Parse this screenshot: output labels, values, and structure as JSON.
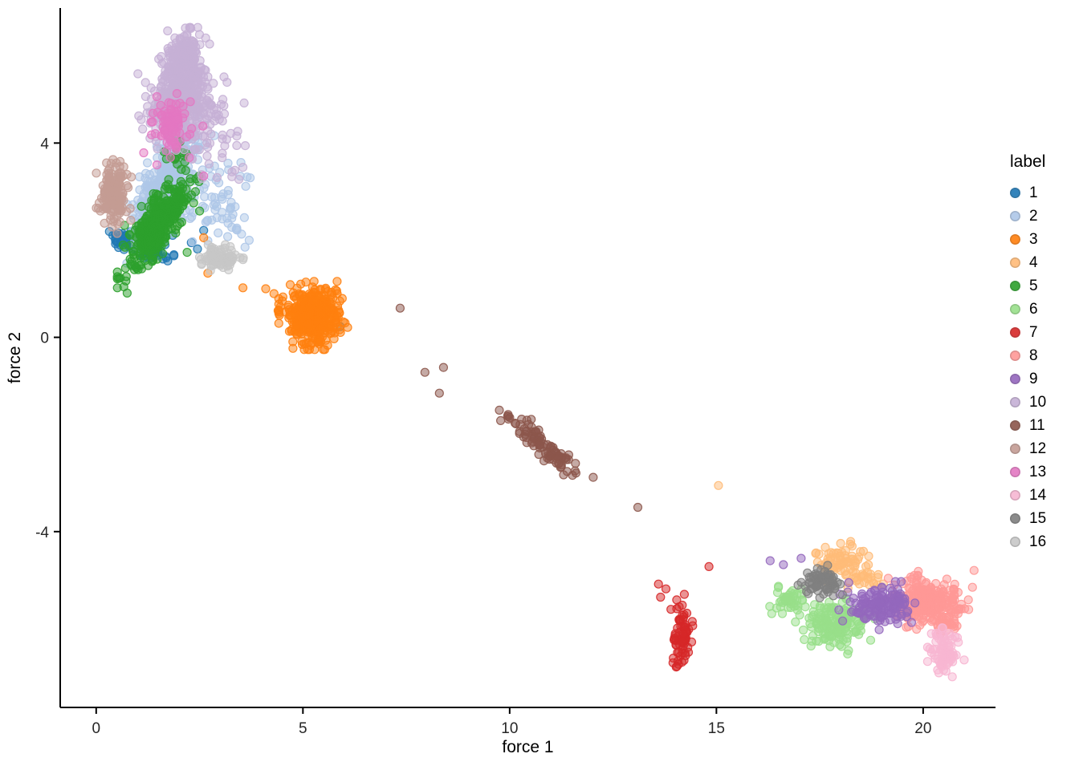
{
  "chart_data": {
    "type": "scatter",
    "title": "",
    "xlabel": "force 1",
    "ylabel": "force 2",
    "xlim": [
      -0.87,
      21.75
    ],
    "ylim": [
      -7.62,
      6.78
    ],
    "xticks": [
      0,
      5,
      10,
      15,
      20
    ],
    "yticks": [
      -4,
      0,
      4
    ],
    "grid": false,
    "legend_title": "label",
    "legend_position": "right",
    "point_radius": 5,
    "point_fill_alpha": 0.5,
    "point_stroke_alpha": 0.9,
    "series": [
      {
        "name": "1",
        "color": "#1f77b4",
        "clusters": [
          {
            "cx": 1.1,
            "cy": 1.88,
            "sx": 0.3,
            "sy": 0.09,
            "slope": -0.25,
            "n": 160
          }
        ],
        "points": [
          [
            2.3,
            1.95
          ],
          [
            2.45,
            1.82
          ],
          [
            2.6,
            2.2
          ],
          [
            5.9,
            0.22
          ],
          [
            1.85,
            2.1
          ]
        ]
      },
      {
        "name": "2",
        "color": "#aec7e8",
        "clusters": [
          {
            "cx": 1.6,
            "cy": 3.1,
            "sx": 0.33,
            "sy": 0.38,
            "slope": 1.25,
            "n": 420
          },
          {
            "cx": 2.45,
            "cy": 3.1,
            "sx": 0.35,
            "sy": 0.45,
            "n": 70
          },
          {
            "cx": 3.25,
            "cy": 2.7,
            "sx": 0.28,
            "sy": 0.55,
            "n": 25
          }
        ],
        "points": [
          [
            3.5,
            3.6
          ],
          [
            3.65,
            3.3
          ],
          [
            3.4,
            2.25
          ],
          [
            3.7,
            2.0
          ],
          [
            2.95,
            2.15
          ]
        ]
      },
      {
        "name": "3",
        "color": "#ff7f0e",
        "clusters": [
          {
            "cx": 5.25,
            "cy": 0.45,
            "sx": 0.32,
            "sy": 0.27,
            "n": 420
          }
        ],
        "points": [
          [
            2.6,
            2.05
          ],
          [
            2.7,
            1.32
          ],
          [
            3.55,
            1.02
          ],
          [
            4.1,
            1.0
          ],
          [
            4.3,
            0.9
          ],
          [
            4.5,
            0.75
          ],
          [
            4.65,
            0.62
          ],
          [
            4.4,
            0.55
          ],
          [
            5.95,
            0.8
          ]
        ]
      },
      {
        "name": "4",
        "color": "#ffbb78",
        "clusters": [
          {
            "cx": 17.95,
            "cy": -4.62,
            "sx": 0.3,
            "sy": 0.16,
            "n": 70
          },
          {
            "cx": 18.55,
            "cy": -4.95,
            "sx": 0.22,
            "sy": 0.12,
            "n": 25
          }
        ],
        "points": [
          [
            15.05,
            -3.05
          ],
          [
            17.4,
            -4.45
          ],
          [
            18.9,
            -5.1
          ]
        ]
      },
      {
        "name": "5",
        "color": "#2ca02c",
        "clusters": [
          {
            "cx": 1.5,
            "cy": 2.35,
            "sx": 0.38,
            "sy": 0.28,
            "slope": 0.95,
            "n": 380
          },
          {
            "cx": 1.92,
            "cy": 3.85,
            "sx": 0.13,
            "sy": 0.16,
            "n": 16
          }
        ],
        "points": [
          [
            2.5,
            2.6
          ],
          [
            2.4,
            3.0
          ],
          [
            0.65,
            1.9
          ],
          [
            2.2,
            1.75
          ]
        ]
      },
      {
        "name": "6",
        "color": "#98df8a",
        "clusters": [
          {
            "cx": 17.9,
            "cy": -5.95,
            "sx": 0.38,
            "sy": 0.22,
            "n": 160
          },
          {
            "cx": 16.75,
            "cy": -5.35,
            "sx": 0.24,
            "sy": 0.13,
            "n": 45
          }
        ],
        "points": [
          [
            17.15,
            -5.55
          ],
          [
            17.35,
            -5.72
          ],
          [
            18.6,
            -5.6
          ],
          [
            16.5,
            -5.15
          ]
        ]
      },
      {
        "name": "7",
        "color": "#d62728",
        "clusters": [
          {
            "cx": 14.18,
            "cy": -6.15,
            "sx": 0.11,
            "sy": 0.33,
            "n": 70
          }
        ],
        "points": [
          [
            13.6,
            -5.08
          ],
          [
            13.78,
            -5.18
          ],
          [
            13.65,
            -5.35
          ],
          [
            13.9,
            -5.6
          ],
          [
            14.82,
            -4.72
          ],
          [
            14.1,
            -5.55
          ],
          [
            13.95,
            -6.7
          ]
        ]
      },
      {
        "name": "8",
        "color": "#ff9896",
        "clusters": [
          {
            "cx": 20.15,
            "cy": -5.45,
            "sx": 0.42,
            "sy": 0.25,
            "n": 220
          },
          {
            "cx": 20.55,
            "cy": -5.85,
            "sx": 0.15,
            "sy": 0.12,
            "n": 30
          }
        ],
        "points": [
          [
            19.3,
            -5.1
          ],
          [
            20.85,
            -5.6
          ]
        ]
      },
      {
        "name": "9",
        "color": "#9467bd",
        "clusters": [
          {
            "cx": 18.95,
            "cy": -5.5,
            "sx": 0.38,
            "sy": 0.2,
            "n": 140
          }
        ],
        "points": [
          [
            16.3,
            -4.6
          ],
          [
            16.62,
            -4.68
          ],
          [
            17.05,
            -4.55
          ],
          [
            18.2,
            -5.05
          ],
          [
            19.6,
            -5.75
          ]
        ]
      },
      {
        "name": "10",
        "color": "#c5b0d5",
        "clusters": [
          {
            "cx": 2.05,
            "cy": 4.85,
            "sx": 0.4,
            "sy": 0.38,
            "n": 300
          },
          {
            "cx": 2.12,
            "cy": 5.6,
            "sx": 0.24,
            "sy": 0.3,
            "n": 190
          },
          {
            "cx": 2.18,
            "cy": 6.05,
            "sx": 0.13,
            "sy": 0.13,
            "n": 35
          },
          {
            "cx": 2.85,
            "cy": 3.95,
            "sx": 0.45,
            "sy": 0.5,
            "n": 40
          }
        ],
        "points": [
          [
            3.55,
            3.5
          ],
          [
            3.4,
            3.95
          ],
          [
            2.55,
            3.35
          ],
          [
            3.1,
            4.6
          ],
          [
            1.3,
            4.1
          ]
        ]
      },
      {
        "name": "11",
        "color": "#8c564b",
        "clusters": [
          {
            "cx": 10.85,
            "cy": -2.25,
            "sx": 0.45,
            "sy": 0.13,
            "slope": -0.68,
            "n": 95
          }
        ],
        "points": [
          [
            7.35,
            0.6
          ],
          [
            7.95,
            -0.72
          ],
          [
            8.4,
            -0.62
          ],
          [
            8.3,
            -1.15
          ],
          [
            9.75,
            -1.5
          ],
          [
            9.95,
            -1.62
          ],
          [
            10.15,
            -1.78
          ],
          [
            13.1,
            -3.5
          ]
        ]
      },
      {
        "name": "12",
        "color": "#c49c94",
        "clusters": [
          {
            "cx": 0.42,
            "cy": 2.92,
            "sx": 0.16,
            "sy": 0.3,
            "n": 170
          }
        ],
        "points": [
          [
            0.85,
            3.3
          ],
          [
            0.2,
            2.35
          ],
          [
            0.1,
            2.6
          ]
        ]
      },
      {
        "name": "13",
        "color": "#e377c2",
        "clusters": [
          {
            "cx": 1.82,
            "cy": 4.38,
            "sx": 0.2,
            "sy": 0.26,
            "n": 95
          }
        ],
        "points": [
          [
            2.58,
            4.35
          ],
          [
            2.6,
            3.32
          ],
          [
            1.47,
            3.55
          ],
          [
            2.25,
            3.7
          ],
          [
            1.15,
            3.8
          ]
        ]
      },
      {
        "name": "14",
        "color": "#f7b6d2",
        "clusters": [
          {
            "cx": 20.55,
            "cy": -6.45,
            "sx": 0.17,
            "sy": 0.22,
            "n": 75
          }
        ],
        "points": [
          [
            20.2,
            -6.1
          ]
        ]
      },
      {
        "name": "15",
        "color": "#7f7f7f",
        "clusters": [
          {
            "cx": 17.6,
            "cy": -5.05,
            "sx": 0.24,
            "sy": 0.14,
            "n": 65
          }
        ],
        "points": [
          [
            17.2,
            -4.85
          ],
          [
            18.05,
            -5.3
          ]
        ]
      },
      {
        "name": "16",
        "color": "#c7c7c7",
        "clusters": [
          {
            "cx": 3.0,
            "cy": 1.62,
            "sx": 0.24,
            "sy": 0.11,
            "n": 85
          }
        ],
        "points": [
          [
            3.55,
            1.6
          ],
          [
            2.55,
            1.5
          ]
        ]
      }
    ]
  }
}
